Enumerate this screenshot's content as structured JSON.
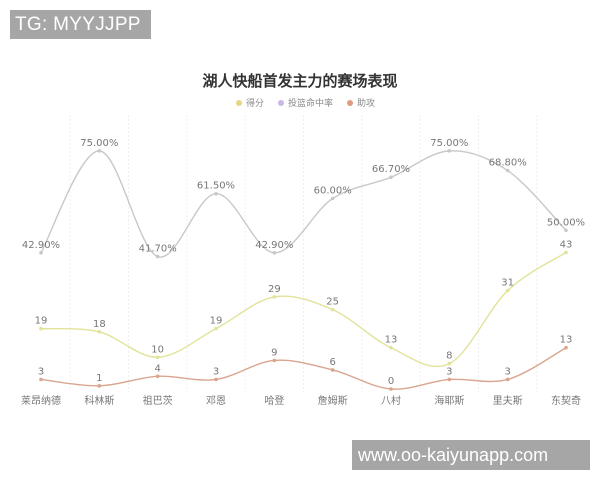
{
  "watermarks": {
    "top": "TG: MYYJJPP",
    "bottom": "www.oo-kaiyunapp.com"
  },
  "chart_data": {
    "type": "line",
    "title": "湖人快船首发主力的赛场表现",
    "categories": [
      "莱昂纳德",
      "科林斯",
      "祖巴茨",
      "邓恩",
      "哈登",
      "詹姆斯",
      "八村",
      "海耶斯",
      "里夫斯",
      "东契奇"
    ],
    "series": [
      {
        "name": "得分",
        "color": "#e2e39a",
        "values": [
          19,
          18,
          10,
          19,
          29,
          25,
          13,
          8,
          31,
          43
        ],
        "labels": [
          "19",
          "18",
          "10",
          "19",
          "29",
          "25",
          "13",
          "8",
          "31",
          "43"
        ]
      },
      {
        "name": "投篮命中率",
        "color": "#c8c8c8",
        "legend_color": "#c9b8e6",
        "values": [
          42.9,
          75.0,
          41.7,
          61.5,
          42.9,
          60.0,
          66.7,
          75.0,
          68.8,
          50.0
        ],
        "labels": [
          "42.90%",
          "75.00%",
          "41.70%",
          "61.50%",
          "42.90%",
          "60.00%",
          "66.70%",
          "75.00%",
          "68.80%",
          "50.00%"
        ]
      },
      {
        "name": "助攻",
        "color": "#d9a58e",
        "values": [
          3,
          1,
          4,
          3,
          9,
          6,
          0,
          3,
          3,
          13
        ],
        "labels": [
          "3",
          "1",
          "4",
          "3",
          "9",
          "6",
          "0",
          "3",
          "3",
          "13"
        ]
      }
    ],
    "xlabel": "",
    "ylabel": "",
    "ylim": [
      0,
      80
    ],
    "grid": "vertical dashed separators between categories",
    "legend_position": "top-center",
    "smooth": true
  }
}
